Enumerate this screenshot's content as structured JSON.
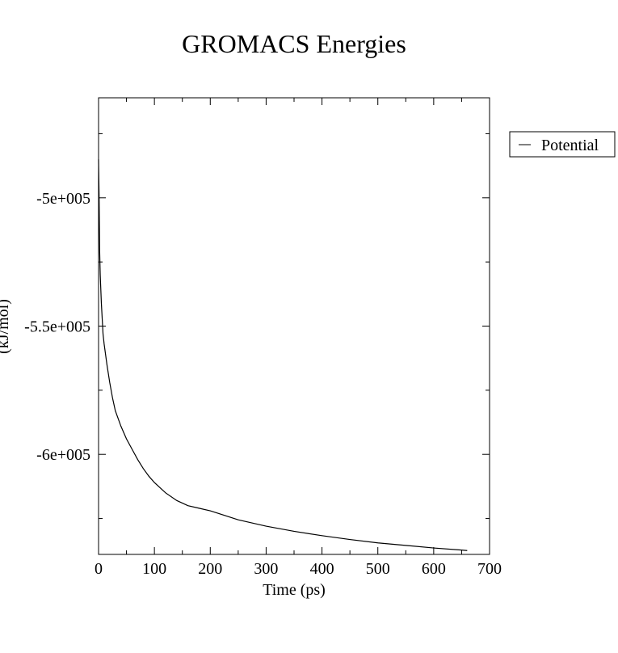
{
  "chart_data": {
    "type": "line",
    "title": "GROMACS Energies",
    "xlabel": "Time (ps)",
    "ylabel": "(kJ/mol)",
    "xlim": [
      0,
      700
    ],
    "ylim": [
      -639000,
      -461000
    ],
    "x_ticks": [
      0,
      100,
      200,
      300,
      400,
      500,
      600,
      700
    ],
    "x_tick_labels": [
      "0",
      "100",
      "200",
      "300",
      "400",
      "500",
      "600",
      "700"
    ],
    "y_ticks": [
      -500000,
      -550000,
      -600000
    ],
    "y_tick_labels": [
      "-5e+005",
      "-5.5e+005",
      "-6e+005"
    ],
    "grid": false,
    "legend_position": "right",
    "series": [
      {
        "name": "Potential",
        "color": "#000000",
        "x": [
          0,
          1,
          2,
          3,
          5,
          8,
          10,
          15,
          20,
          25,
          30,
          40,
          50,
          60,
          70,
          80,
          90,
          100,
          120,
          140,
          160,
          180,
          200,
          250,
          300,
          350,
          400,
          450,
          500,
          550,
          600,
          650,
          660
        ],
        "y": [
          -485000,
          -500000,
          -521000,
          -530000,
          -541000,
          -553000,
          -557000,
          -565000,
          -572000,
          -578000,
          -583000,
          -589000,
          -594000,
          -598000,
          -602000,
          -605500,
          -608500,
          -611000,
          -615000,
          -618000,
          -620000,
          -621000,
          -622000,
          -625500,
          -628000,
          -630000,
          -631700,
          -633200,
          -634500,
          -635500,
          -636500,
          -637300,
          -637500
        ]
      }
    ]
  }
}
